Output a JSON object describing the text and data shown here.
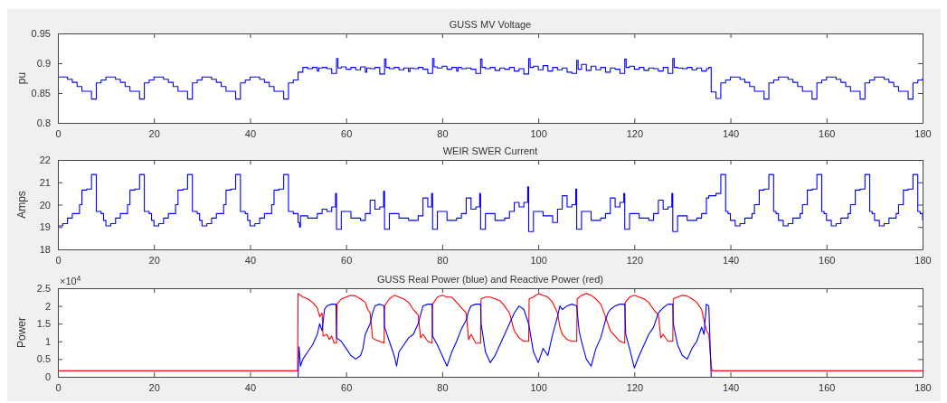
{
  "chart_data": [
    {
      "type": "step",
      "title": "GUSS MV Voltage",
      "ylabel": "pu",
      "xlim": [
        0,
        180
      ],
      "xticks": [
        0,
        20,
        40,
        60,
        80,
        100,
        120,
        140,
        160,
        180
      ],
      "ylim": [
        0.8,
        0.95
      ],
      "yticks": [
        0.8,
        0.85,
        0.9,
        0.95
      ],
      "x": [
        0,
        2,
        3,
        4,
        5,
        7,
        8,
        9,
        10,
        12,
        13,
        14,
        15,
        17,
        18,
        19,
        20,
        22,
        23,
        24,
        25,
        27,
        28,
        29,
        30,
        32,
        33,
        34,
        35,
        37,
        38,
        39,
        40,
        42,
        43,
        44,
        45,
        47,
        48,
        49,
        50,
        51,
        52,
        53,
        54,
        54.3,
        55,
        56,
        57,
        58,
        58.3,
        59,
        60,
        61,
        62,
        63,
        64,
        64.3,
        65,
        66,
        67,
        68,
        68.3,
        69,
        70,
        71,
        72,
        73,
        73.3,
        74,
        75,
        76,
        77,
        78,
        78.3,
        79,
        80,
        81,
        82,
        83,
        83.3,
        84,
        85,
        86,
        87,
        88,
        88.3,
        89,
        90,
        91,
        92,
        93,
        94,
        95,
        96,
        97,
        98,
        98.3,
        99,
        100,
        101,
        102,
        103,
        104,
        105,
        106,
        107,
        108,
        108.3,
        109,
        110,
        111,
        112,
        113,
        114,
        115,
        116,
        117,
        118,
        118.3,
        119,
        120,
        121,
        122,
        123,
        124,
        125,
        126,
        127,
        128,
        128.3,
        129,
        130,
        131,
        132,
        133,
        134,
        135,
        135.5,
        136,
        137,
        138,
        139,
        140,
        142,
        143,
        144,
        145,
        147,
        148,
        149,
        150,
        152,
        153,
        154,
        155,
        157,
        158,
        159,
        160,
        162,
        163,
        164,
        165,
        167,
        168,
        169,
        170,
        172,
        173,
        174,
        175,
        177,
        178,
        179,
        180
      ],
      "series": [
        {
          "color": "#0000ff",
          "values": [
            0.877,
            0.873,
            0.868,
            0.861,
            0.853,
            0.84,
            0.867,
            0.872,
            0.877,
            0.873,
            0.868,
            0.861,
            0.853,
            0.84,
            0.867,
            0.872,
            0.877,
            0.873,
            0.868,
            0.861,
            0.853,
            0.84,
            0.867,
            0.872,
            0.877,
            0.873,
            0.868,
            0.861,
            0.853,
            0.84,
            0.867,
            0.872,
            0.877,
            0.873,
            0.868,
            0.861,
            0.853,
            0.84,
            0.867,
            0.872,
            0.885,
            0.893,
            0.891,
            0.893,
            0.887,
            0.892,
            0.893,
            0.891,
            0.883,
            0.908,
            0.892,
            0.894,
            0.89,
            0.893,
            0.889,
            0.894,
            0.885,
            0.892,
            0.891,
            0.893,
            0.882,
            0.907,
            0.893,
            0.891,
            0.893,
            0.889,
            0.892,
            0.886,
            0.892,
            0.891,
            0.893,
            0.89,
            0.883,
            0.908,
            0.894,
            0.892,
            0.895,
            0.89,
            0.893,
            0.887,
            0.893,
            0.891,
            0.892,
            0.89,
            0.883,
            0.907,
            0.893,
            0.891,
            0.893,
            0.888,
            0.892,
            0.89,
            0.893,
            0.887,
            0.891,
            0.882,
            0.908,
            0.893,
            0.895,
            0.889,
            0.896,
            0.887,
            0.893,
            0.889,
            0.892,
            0.885,
            0.883,
            0.905,
            0.89,
            0.898,
            0.888,
            0.895,
            0.889,
            0.893,
            0.885,
            0.892,
            0.89,
            0.883,
            0.907,
            0.893,
            0.895,
            0.89,
            0.893,
            0.888,
            0.892,
            0.891,
            0.887,
            0.893,
            0.883,
            0.908,
            0.893,
            0.892,
            0.891,
            0.893,
            0.889,
            0.892,
            0.887,
            0.891,
            0.893,
            0.852,
            0.841,
            0.867,
            0.872,
            0.877,
            0.873,
            0.868,
            0.861,
            0.853,
            0.84,
            0.867,
            0.872,
            0.877,
            0.873,
            0.868,
            0.861,
            0.853,
            0.84,
            0.867,
            0.872,
            0.877,
            0.873,
            0.868,
            0.861,
            0.853,
            0.84,
            0.867,
            0.872,
            0.877,
            0.873,
            0.868,
            0.861,
            0.853,
            0.84,
            0.867,
            0.872,
            0.875
          ]
        }
      ]
    },
    {
      "type": "step",
      "title": "WEIR SWER Current",
      "ylabel": "Amps",
      "xlim": [
        0,
        180
      ],
      "xticks": [
        0,
        20,
        40,
        60,
        80,
        100,
        120,
        140,
        160,
        180
      ],
      "ylim": [
        18,
        22
      ],
      "yticks": [
        18,
        19,
        20,
        21,
        22
      ],
      "x": [
        0,
        1,
        2,
        3,
        4.5,
        5,
        6,
        7,
        8,
        9,
        9.5,
        10,
        11,
        12,
        13,
        14.5,
        15,
        16,
        17,
        18,
        19,
        19.5,
        20,
        21,
        22,
        23,
        24.5,
        25,
        26,
        27,
        28,
        29,
        29.5,
        30,
        31,
        32,
        33,
        34.5,
        35,
        36,
        37,
        38,
        39,
        39.5,
        40,
        41,
        42,
        43,
        44.5,
        45,
        46,
        47,
        48,
        49,
        50,
        50.3,
        50.5,
        52,
        54,
        55,
        56,
        57,
        57.8,
        58,
        59,
        61,
        63,
        64,
        65,
        66,
        67,
        67.8,
        68,
        69,
        71,
        73,
        75,
        76,
        77,
        77.8,
        78,
        79,
        81,
        83,
        84,
        85,
        86,
        87,
        87.8,
        88,
        89,
        91,
        93,
        94,
        95,
        96,
        97,
        97.8,
        98,
        99,
        101,
        103,
        104,
        105,
        106,
        107,
        107.8,
        108,
        109,
        111,
        113,
        114,
        115,
        116,
        117,
        117.8,
        118,
        119,
        121,
        123,
        124,
        125,
        126,
        127,
        127.8,
        128,
        129,
        131,
        133,
        134,
        135,
        135.5,
        137,
        138,
        139,
        139.5,
        140,
        141,
        142,
        143,
        144.5,
        145,
        146,
        147,
        148,
        149,
        149.5,
        150,
        151,
        152,
        153,
        154.5,
        155,
        156,
        157,
        158,
        159,
        159.5,
        160,
        161,
        162,
        163,
        164.5,
        165,
        166,
        167,
        168,
        169,
        169.5,
        170,
        171,
        172,
        173,
        174.5,
        175,
        176,
        177,
        178,
        179,
        179.5,
        180
      ],
      "series": [
        {
          "color": "#0000ff",
          "values": [
            19.05,
            19.15,
            19.4,
            19.6,
            20,
            20.65,
            20.7,
            21.35,
            19.7,
            19.6,
            19.3,
            19.05,
            19.15,
            19.4,
            19.6,
            20,
            20.65,
            20.7,
            21.35,
            19.7,
            19.6,
            19.3,
            19.05,
            19.15,
            19.4,
            19.6,
            20,
            20.65,
            20.7,
            21.35,
            19.7,
            19.6,
            19.3,
            19.05,
            19.15,
            19.4,
            19.6,
            20,
            20.65,
            20.7,
            21.35,
            19.7,
            19.6,
            19.3,
            19.05,
            19.15,
            19.4,
            19.6,
            20,
            20.65,
            20.7,
            21.35,
            19.7,
            19.6,
            19.2,
            19,
            19.5,
            19.4,
            19.6,
            19.8,
            19.7,
            19.9,
            20.5,
            18.9,
            19.7,
            19.4,
            19.3,
            19.6,
            20.2,
            19.8,
            19.9,
            20.6,
            18.9,
            19.6,
            19.4,
            19.3,
            19.5,
            20.3,
            19.9,
            20.5,
            18.9,
            19.7,
            19.3,
            19.4,
            19.6,
            20.3,
            19.8,
            19.9,
            20.5,
            18.9,
            19.6,
            19.3,
            19.4,
            19.7,
            20.1,
            19.9,
            20.1,
            20.8,
            18.8,
            19.7,
            19.5,
            19.2,
            19.8,
            20.4,
            19.9,
            20,
            20.7,
            18.9,
            19.7,
            19.3,
            19.4,
            19.6,
            20.3,
            19.9,
            20.1,
            20.5,
            18.9,
            19.6,
            19.4,
            19.3,
            19.6,
            20.2,
            19.8,
            19.9,
            20.5,
            18.8,
            19.5,
            19.3,
            19.4,
            19.6,
            20.3,
            20.4,
            20.5,
            21.35,
            19.7,
            19.6,
            19.3,
            19.05,
            19.15,
            19.4,
            19.6,
            20,
            20.65,
            20.7,
            21.35,
            19.7,
            19.6,
            19.3,
            19.05,
            19.15,
            19.4,
            19.6,
            20,
            20.65,
            20.7,
            21.35,
            19.7,
            19.6,
            19.3,
            19.05,
            19.15,
            19.4,
            19.6,
            20,
            20.65,
            20.7,
            21.35,
            19.7,
            19.6,
            19.3,
            19.05,
            19.15,
            19.4,
            19.6,
            20,
            20.65,
            20.7,
            21.35,
            19.7,
            19.6,
            19.3
          ]
        }
      ]
    },
    {
      "type": "line",
      "title": "GUSS Real Power (blue) and Reactive Power (red)",
      "ylabel": "Power",
      "xlim": [
        0,
        180
      ],
      "xticks": [
        0,
        20,
        40,
        60,
        80,
        100,
        120,
        140,
        160,
        180
      ],
      "ylim": [
        0,
        2.5
      ],
      "yticks": [
        0,
        0.5,
        1,
        1.5,
        2,
        2.5
      ],
      "annotations": [
        "×10$^{4}$"
      ],
      "series": [
        {
          "color": "#ff0000",
          "x": [
            0,
            49.9,
            50,
            51,
            52,
            53,
            54,
            54.5,
            55,
            55.2,
            56,
            56.5,
            57,
            57.5,
            58,
            58.1,
            59,
            60,
            61,
            62,
            63,
            64,
            64.5,
            65,
            65.5,
            66,
            67,
            67.9,
            68,
            69,
            70,
            71,
            72,
            73,
            74,
            75,
            75.5,
            76,
            77,
            77.9,
            78,
            79,
            80,
            81,
            82,
            83,
            84,
            85,
            85.5,
            86,
            87,
            88,
            88.1,
            89,
            90,
            91,
            92,
            93,
            94,
            95,
            96,
            97,
            98,
            98.1,
            99,
            100,
            101,
            102,
            103,
            104,
            104.5,
            105,
            106,
            107,
            108,
            108.1,
            109,
            110,
            111,
            112,
            113,
            114,
            115,
            116,
            117,
            118,
            118.1,
            119,
            120,
            121,
            122,
            123,
            124,
            125,
            125.5,
            126,
            127,
            128,
            128.1,
            129,
            130,
            131,
            132,
            133,
            134,
            134.5,
            135,
            135.5,
            136,
            136.2,
            180
          ],
          "values": [
            0.17,
            0.17,
            2.35,
            2.25,
            2.2,
            2.1,
            1.95,
            1.7,
            1.8,
            1.15,
            1.2,
            1.05,
            1.15,
            0.95,
            0.95,
            2.05,
            2.2,
            2.25,
            2.3,
            2.28,
            2.2,
            2.1,
            1.9,
            1.8,
            1.1,
            1.05,
            1,
            0.95,
            2,
            2.2,
            2.3,
            2.25,
            2.2,
            2.1,
            1.9,
            1.75,
            1.1,
            1.2,
            1,
            0.95,
            2.05,
            2.25,
            2.3,
            2.25,
            2.25,
            2.1,
            1.95,
            1.8,
            1.05,
            1.2,
            0.95,
            0.95,
            2.2,
            2.25,
            2.25,
            2.2,
            2.15,
            2,
            1.8,
            1.3,
            1.1,
            1,
            1,
            2.2,
            2.25,
            2.35,
            2.3,
            2.25,
            2.1,
            1.8,
            1.4,
            1.2,
            1.05,
            1,
            1,
            2.2,
            2.3,
            2.35,
            2.3,
            2.2,
            2.05,
            1.7,
            1.3,
            1.15,
            1,
            0.95,
            2.1,
            2.25,
            2.3,
            2.25,
            2.2,
            2.1,
            1.9,
            1.75,
            1.1,
            1.2,
            1,
            1,
            2.2,
            2.25,
            2.3,
            2.28,
            2.2,
            2.1,
            1.9,
            1.6,
            1.3,
            1.2,
            0.3,
            0.17,
            0.17
          ]
        },
        {
          "color": "#0000ff",
          "x": [
            50,
            50.2,
            50.5,
            51,
            52,
            53,
            54,
            54.5,
            55,
            55.5,
            56,
            57,
            57.9,
            58,
            59,
            60,
            61,
            62,
            63,
            63.5,
            64,
            65,
            65.5,
            66,
            67,
            67.9,
            68,
            69,
            70,
            70.5,
            71,
            72,
            73,
            74,
            75,
            75.5,
            76,
            77,
            77.9,
            78,
            79,
            80,
            81,
            82,
            83,
            84,
            85,
            85.5,
            86,
            87,
            88,
            88.1,
            89,
            90,
            91,
            92,
            93,
            94,
            95,
            96,
            97,
            98,
            99,
            100,
            101,
            102,
            103,
            104,
            104.5,
            105,
            106,
            107,
            108,
            108.5,
            109,
            110,
            111,
            112,
            113,
            114,
            114.5,
            115,
            116,
            117,
            118,
            118.2,
            119,
            120,
            121,
            122,
            123,
            124,
            124.5,
            125,
            126,
            127,
            128,
            128.1,
            129,
            130,
            131,
            132,
            133,
            134,
            134.5,
            135,
            135.5,
            136
          ],
          "values": [
            0,
            0.85,
            0.3,
            0.5,
            0.7,
            0.9,
            1.2,
            1.5,
            1.3,
            1.9,
            2,
            2.05,
            2.05,
            1.1,
            1,
            0.8,
            0.6,
            0.5,
            0.6,
            0.8,
            1.2,
            1.5,
            1.8,
            2,
            2.05,
            2,
            1.4,
            1,
            0.6,
            0.3,
            0.7,
            0.9,
            1.1,
            1.2,
            1.5,
            1.75,
            2,
            2.05,
            2.05,
            1.15,
            0.9,
            0.6,
            0.3,
            0.7,
            1,
            1.35,
            1.6,
            1.85,
            2,
            2.05,
            2.05,
            1.5,
            0.7,
            0.4,
            0.6,
            0.9,
            1.2,
            1.5,
            1.8,
            2,
            1.9,
            1.5,
            0.7,
            0.4,
            0.8,
            0.6,
            1.2,
            1.7,
            2,
            1.9,
            2,
            2.05,
            2,
            1.3,
            1,
            0.5,
            0.3,
            0.8,
            1.1,
            1.6,
            1.8,
            1.9,
            2,
            2.05,
            2.05,
            1.2,
            0.8,
            0.25,
            0.6,
            0.9,
            1.2,
            1.4,
            1.6,
            1.8,
            1.95,
            2.05,
            2.05,
            1.5,
            0.9,
            0.6,
            0.5,
            0.8,
            1,
            1.4,
            1.2,
            2.05,
            2,
            0
          ]
        }
      ]
    }
  ]
}
